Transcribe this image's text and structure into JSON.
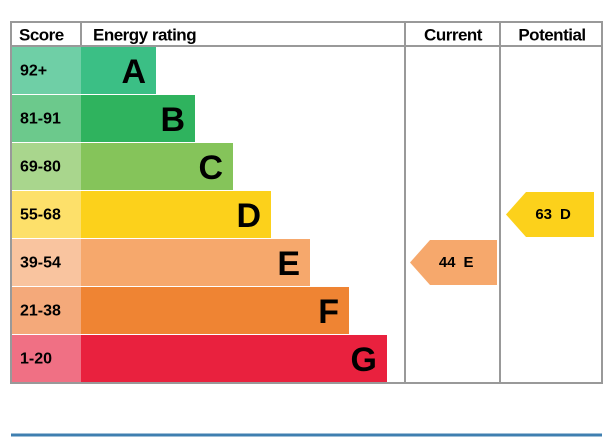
{
  "header": {
    "score": "Score",
    "rating": "Energy rating",
    "current": "Current",
    "potential": "Potential"
  },
  "rows": [
    {
      "score": "92+",
      "letter": "A"
    },
    {
      "score": "81-91",
      "letter": "B"
    },
    {
      "score": "69-80",
      "letter": "C"
    },
    {
      "score": "55-68",
      "letter": "D"
    },
    {
      "score": "39-54",
      "letter": "E"
    },
    {
      "score": "21-38",
      "letter": "F"
    },
    {
      "score": "1-20",
      "letter": "G"
    }
  ],
  "current": {
    "value": 44,
    "letter": "E"
  },
  "potential": {
    "value": 63,
    "letter": "D"
  }
}
